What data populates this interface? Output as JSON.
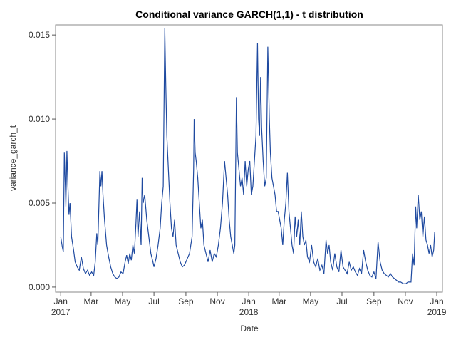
{
  "chart_data": {
    "type": "line",
    "title": "Conditional variance GARCH(1,1) - t distribution",
    "x_label": "Date",
    "y_label": "variance_garch_t",
    "xlim": [
      -10,
      741
    ],
    "ylim": [
      -0.0003,
      0.0156
    ],
    "xticks": [
      {
        "value": 0,
        "label": "Jan"
      },
      {
        "value": 59,
        "label": "Mar"
      },
      {
        "value": 120,
        "label": "May"
      },
      {
        "value": 181,
        "label": "Jul"
      },
      {
        "value": 243,
        "label": "Sep"
      },
      {
        "value": 304,
        "label": "Nov"
      },
      {
        "value": 365,
        "label": "Jan"
      },
      {
        "value": 424,
        "label": "Mar"
      },
      {
        "value": 485,
        "label": "May"
      },
      {
        "value": 546,
        "label": "Jul"
      },
      {
        "value": 608,
        "label": "Sep"
      },
      {
        "value": 669,
        "label": "Nov"
      },
      {
        "value": 730,
        "label": "Jan"
      }
    ],
    "x_year_labels": [
      {
        "value": 0,
        "label": "2017"
      },
      {
        "value": 365,
        "label": "2018"
      },
      {
        "value": 730,
        "label": "2019"
      }
    ],
    "yticks": [
      {
        "value": 0,
        "label": "0.000"
      },
      {
        "value": 0.005,
        "label": "0.005"
      },
      {
        "value": 0.01,
        "label": "0.010"
      },
      {
        "value": 0.015,
        "label": "0.015"
      }
    ],
    "series": [
      {
        "name": "variance_garch_t",
        "color": "#1f4aa0",
        "x": [
          0,
          3,
          5,
          7,
          9,
          10,
          12,
          14,
          16,
          18,
          21,
          25,
          28,
          32,
          36,
          40,
          44,
          48,
          52,
          56,
          60,
          64,
          67,
          70,
          72,
          76,
          78,
          80,
          82,
          85,
          89,
          93,
          97,
          101,
          105,
          109,
          113,
          117,
          121,
          125,
          128,
          131,
          134,
          137,
          140,
          143,
          146,
          148,
          150,
          153,
          156,
          158,
          160,
          163,
          167,
          171,
          175,
          179,
          181,
          185,
          189,
          193,
          196,
          199,
          202,
          204,
          206,
          209,
          212,
          215,
          218,
          221,
          224,
          228,
          232,
          236,
          240,
          243,
          250,
          255,
          258,
          259,
          261,
          263,
          266,
          269,
          272,
          275,
          278,
          282,
          286,
          290,
          294,
          298,
          302,
          306,
          310,
          314,
          318,
          321,
          324,
          327,
          330,
          333,
          336,
          338,
          341,
          343,
          346,
          349,
          352,
          355,
          358,
          361,
          364,
          367,
          370,
          373,
          376,
          379,
          382,
          384,
          386,
          388,
          390,
          393,
          396,
          399,
          402,
          405,
          407,
          410,
          413,
          416,
          419,
          422,
          425,
          428,
          431,
          434,
          437,
          440,
          443,
          446,
          449,
          452,
          455,
          458,
          461,
          464,
          467,
          470,
          473,
          476,
          479,
          483,
          487,
          491,
          495,
          499,
          503,
          507,
          511,
          515,
          518,
          521,
          524,
          528,
          532,
          536,
          540,
          544,
          548,
          552,
          556,
          560,
          564,
          568,
          572,
          576,
          580,
          584,
          588,
          592,
          596,
          600,
          604,
          608,
          612,
          616,
          620,
          624,
          628,
          632,
          636,
          640,
          644,
          648,
          652,
          656,
          660,
          665,
          670,
          674,
          680,
          683,
          686,
          689,
          691,
          694,
          697,
          700,
          703,
          706,
          709,
          712,
          715,
          718,
          721,
          724,
          726
        ],
        "values": [
          0.003,
          0.0024,
          0.0021,
          0.008,
          0.006,
          0.0048,
          0.0081,
          0.006,
          0.0043,
          0.005,
          0.003,
          0.0022,
          0.0015,
          0.0012,
          0.001,
          0.0018,
          0.0011,
          0.0008,
          0.001,
          0.0007,
          0.0009,
          0.0007,
          0.0015,
          0.0032,
          0.0025,
          0.0069,
          0.006,
          0.0069,
          0.0055,
          0.004,
          0.0025,
          0.0018,
          0.0012,
          0.0008,
          0.0006,
          0.0005,
          0.0006,
          0.0009,
          0.0008,
          0.0015,
          0.0019,
          0.0014,
          0.002,
          0.0016,
          0.0025,
          0.002,
          0.0038,
          0.0052,
          0.003,
          0.0045,
          0.0025,
          0.0065,
          0.005,
          0.0055,
          0.004,
          0.003,
          0.002,
          0.0015,
          0.0012,
          0.0017,
          0.0025,
          0.0035,
          0.005,
          0.006,
          0.0154,
          0.012,
          0.009,
          0.007,
          0.005,
          0.0035,
          0.003,
          0.004,
          0.0025,
          0.002,
          0.0015,
          0.0012,
          0.0013,
          0.0015,
          0.002,
          0.003,
          0.007,
          0.01,
          0.008,
          0.0075,
          0.0065,
          0.005,
          0.0035,
          0.004,
          0.0025,
          0.002,
          0.0015,
          0.0022,
          0.0015,
          0.002,
          0.0018,
          0.0025,
          0.0035,
          0.005,
          0.0075,
          0.0065,
          0.0055,
          0.004,
          0.003,
          0.0025,
          0.002,
          0.0025,
          0.0113,
          0.008,
          0.007,
          0.006,
          0.0065,
          0.0055,
          0.0075,
          0.006,
          0.007,
          0.0075,
          0.0055,
          0.006,
          0.0075,
          0.009,
          0.0145,
          0.01,
          0.009,
          0.0125,
          0.0095,
          0.0075,
          0.006,
          0.0065,
          0.0143,
          0.01,
          0.008,
          0.0065,
          0.006,
          0.0055,
          0.0045,
          0.0045,
          0.004,
          0.0035,
          0.0025,
          0.004,
          0.005,
          0.0068,
          0.0045,
          0.0035,
          0.0025,
          0.002,
          0.0042,
          0.003,
          0.004,
          0.0025,
          0.0045,
          0.003,
          0.0025,
          0.0028,
          0.0018,
          0.0015,
          0.0025,
          0.0015,
          0.0012,
          0.0017,
          0.001,
          0.0013,
          0.0008,
          0.0028,
          0.002,
          0.0025,
          0.0015,
          0.001,
          0.002,
          0.0012,
          0.0009,
          0.0022,
          0.0012,
          0.001,
          0.0008,
          0.0015,
          0.001,
          0.0012,
          0.0009,
          0.0007,
          0.0011,
          0.0008,
          0.0022,
          0.0015,
          0.001,
          0.0007,
          0.0006,
          0.0009,
          0.0005,
          0.0027,
          0.0015,
          0.001,
          0.0008,
          0.0007,
          0.0006,
          0.0008,
          0.0006,
          0.0005,
          0.0004,
          0.0003,
          0.0003,
          0.0002,
          0.0002,
          0.0003,
          0.0003,
          0.002,
          0.0013,
          0.0048,
          0.0035,
          0.0055,
          0.004,
          0.0045,
          0.003,
          0.0042,
          0.0028,
          0.0025,
          0.002,
          0.0025,
          0.0018,
          0.0022,
          0.0033
        ]
      }
    ]
  }
}
